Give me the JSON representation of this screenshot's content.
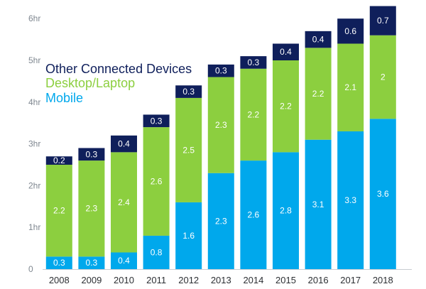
{
  "colors": {
    "mobile": "#00a8ec",
    "desktop_laptop": "#8ccf3f",
    "other_connected_devices": "#0f1f5b",
    "tick_text": "#7f8790",
    "axis_line": "#c8ccd1",
    "category_text": "#2c2f33",
    "data_label": "#ffffff"
  },
  "chart_data": {
    "type": "bar",
    "stacked": true,
    "categories": [
      "2008",
      "2009",
      "2010",
      "2011",
      "2012",
      "2013",
      "2014",
      "2015",
      "2016",
      "2017",
      "2018"
    ],
    "series": [
      {
        "name": "Mobile",
        "values": [
          0.3,
          0.3,
          0.4,
          0.8,
          1.6,
          2.3,
          2.6,
          2.8,
          3.1,
          3.3,
          3.6
        ]
      },
      {
        "name": "Desktop/Laptop",
        "values": [
          2.2,
          2.3,
          2.4,
          2.6,
          2.5,
          2.3,
          2.2,
          2.2,
          2.2,
          2.1,
          2.0
        ]
      },
      {
        "name": "Other Connected Devices",
        "values": [
          0.2,
          0.3,
          0.4,
          0.3,
          0.3,
          0.3,
          0.3,
          0.4,
          0.4,
          0.6,
          0.7
        ]
      }
    ],
    "data_labels": [
      [
        "0.3",
        "0.3",
        "0.4",
        "0.8",
        "1.6",
        "2.3",
        "2.6",
        "2.8",
        "3.1",
        "3.3",
        "3.6"
      ],
      [
        "2.2",
        "2.3",
        "2.4",
        "2.6",
        "2.5",
        "2.3",
        "2.2",
        "2.2",
        "2.2",
        "2.1",
        "2"
      ],
      [
        "0.2",
        "0.3",
        "0.4",
        "0.3",
        "0.3",
        "0.3",
        "0.3",
        "0.4",
        "0.4",
        "0.6",
        "0.7"
      ]
    ],
    "yticks": [
      0,
      1,
      2,
      3,
      4,
      5,
      6
    ],
    "ytick_labels": [
      "0",
      "1hr",
      "2hr",
      "3hr",
      "4hr",
      "5hr",
      "6hr"
    ],
    "ylim": [
      0,
      6.3
    ],
    "xlabel": "",
    "ylabel": "",
    "title": "",
    "grid": false,
    "legend": {
      "position": "top-left",
      "entries": [
        {
          "label": "Other Connected Devices",
          "series": "Other Connected Devices"
        },
        {
          "label": "Desktop/Laptop",
          "series": "Desktop/Laptop"
        },
        {
          "label": "Mobile",
          "series": "Mobile"
        }
      ]
    }
  }
}
